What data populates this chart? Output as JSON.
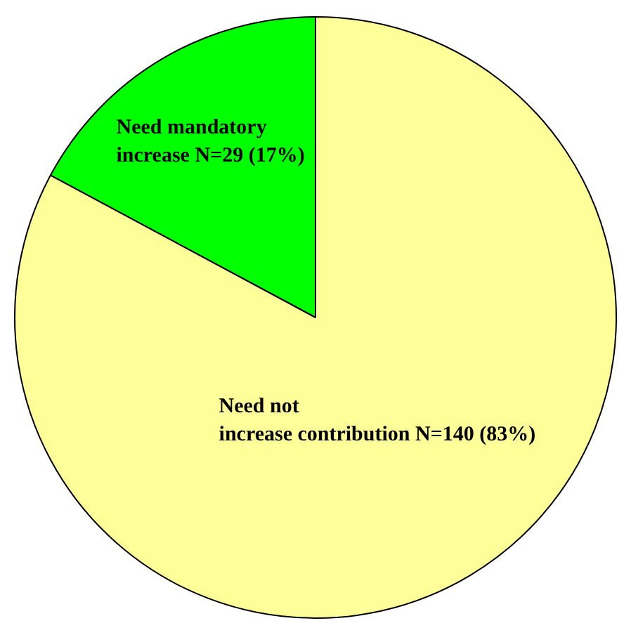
{
  "chart_data": {
    "type": "pie",
    "categories": [
      "Need mandatory increase",
      "Need not increase contribution"
    ],
    "values": [
      29,
      140
    ],
    "colors": [
      "#00ff00",
      "#ffff99"
    ],
    "value_labels": [
      "N=29 (17%)",
      "N=140 (83%)"
    ],
    "legend": false
  }
}
